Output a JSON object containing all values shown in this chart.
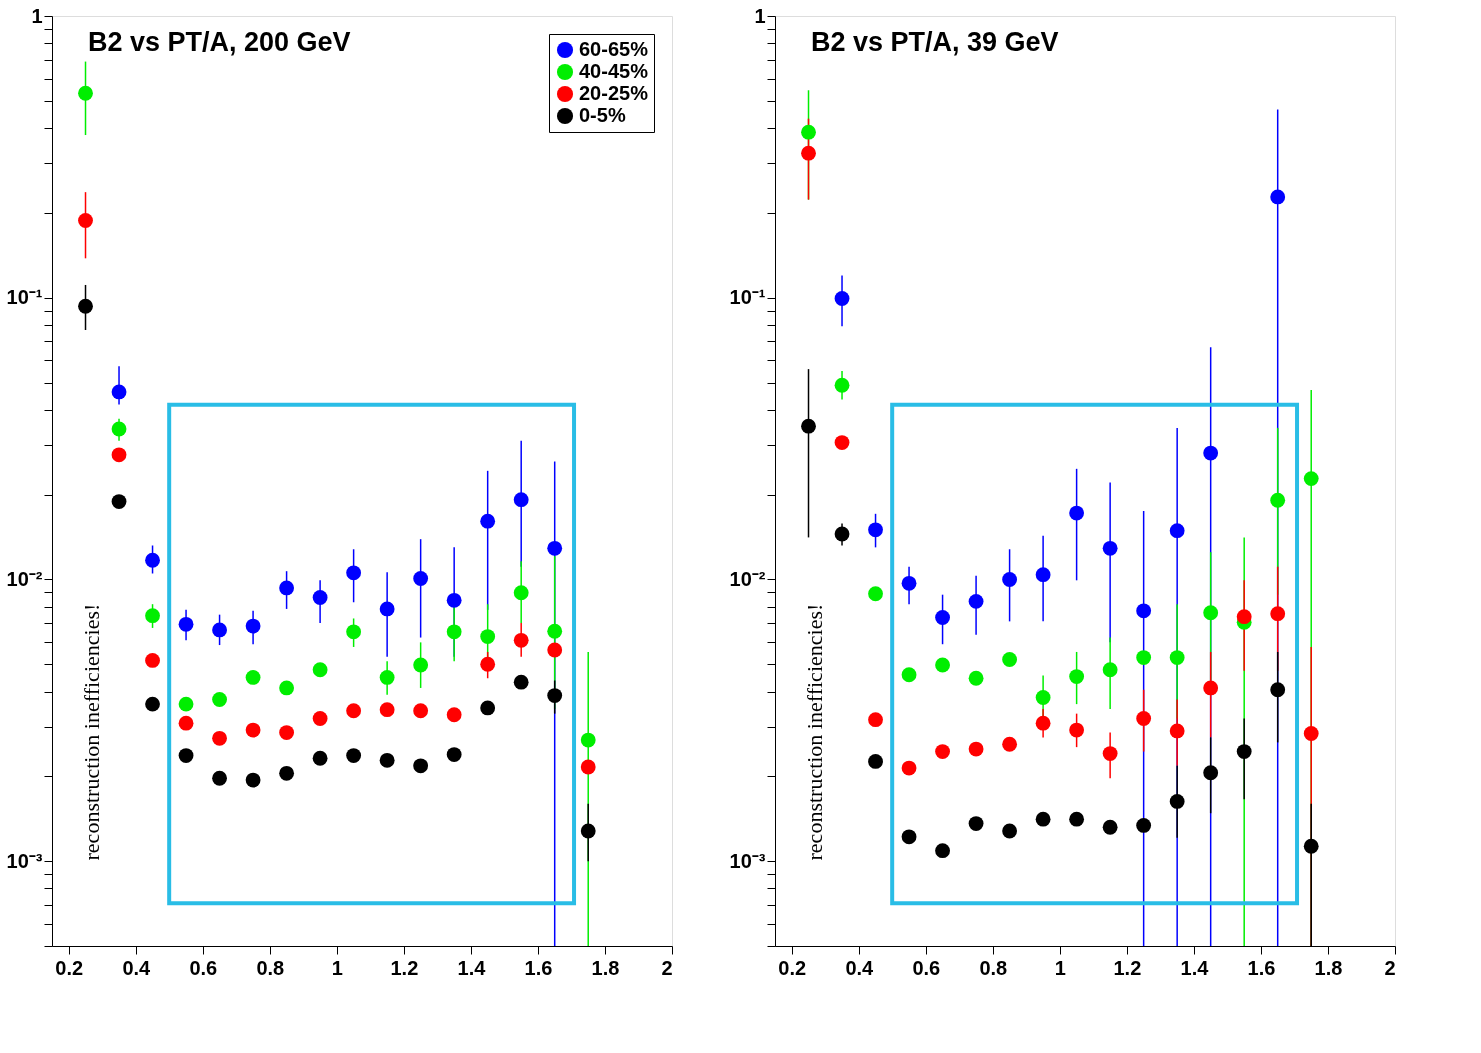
{
  "chart_data": [
    {
      "type": "scatter",
      "title": "B2 vs PT/A, 200 GeV",
      "marker": "circle",
      "log": true,
      "grid": false,
      "legend": "top right",
      "x": [
        0.25,
        0.35,
        0.45,
        0.55,
        0.65,
        0.75,
        0.85,
        0.95,
        1.05,
        1.15,
        1.25,
        1.35,
        1.45,
        1.55,
        1.65,
        1.75
      ],
      "xlim": [
        0.15,
        2
      ],
      "ylim": [
        0.0005,
        1
      ],
      "xticks": [
        0.2,
        0.4,
        0.6,
        0.8,
        1,
        1.2,
        1.4,
        1.6,
        1.8,
        2
      ],
      "yticks": [
        {
          "value": 0.0005,
          "label": null
        },
        {
          "value": 0.0006,
          "label": null
        },
        {
          "value": 0.0007,
          "label": null
        },
        {
          "value": 0.0008,
          "label": null
        },
        {
          "value": 0.0009,
          "label": null
        },
        {
          "value": 0.001,
          "label": "10⁻³"
        },
        {
          "value": 0.002,
          "label": null
        },
        {
          "value": 0.003,
          "label": null
        },
        {
          "value": 0.004,
          "label": null
        },
        {
          "value": 0.005,
          "label": null
        },
        {
          "value": 0.006,
          "label": null
        },
        {
          "value": 0.007,
          "label": null
        },
        {
          "value": 0.008,
          "label": null
        },
        {
          "value": 0.009,
          "label": null
        },
        {
          "value": 0.01,
          "label": "10⁻²"
        },
        {
          "value": 0.02,
          "label": null
        },
        {
          "value": 0.03,
          "label": null
        },
        {
          "value": 0.04,
          "label": null
        },
        {
          "value": 0.05,
          "label": null
        },
        {
          "value": 0.06,
          "label": null
        },
        {
          "value": 0.07,
          "label": null
        },
        {
          "value": 0.08,
          "label": null
        },
        {
          "value": 0.09,
          "label": null
        },
        {
          "value": 0.1,
          "label": "10⁻¹"
        },
        {
          "value": 0.2,
          "label": null
        },
        {
          "value": 0.3,
          "label": null
        },
        {
          "value": 0.4,
          "label": null
        },
        {
          "value": 0.5,
          "label": null
        },
        {
          "value": 0.6,
          "label": null
        },
        {
          "value": 0.7,
          "label": null
        },
        {
          "value": 0.8,
          "label": null
        },
        {
          "value": 0.9,
          "label": null
        },
        1
      ],
      "annotations": [
        "reconstruction inefficiencies!"
      ],
      "series": [
        {
          "name": "60-65%",
          "color": "#0000ff",
          "values": [
            null,
            0.0463,
            0.0117,
            0.00693,
            0.00662,
            0.00683,
            0.00933,
            0.00863,
            0.01056,
            0.00786,
            0.01008,
            0.00843,
            0.0161,
            0.0192,
            0.0129,
            null
          ],
          "errors": [
            null,
            [
              0.0418,
              0.0571
            ],
            [
              0.0105,
              0.0132
            ],
            [
              0.00608,
              0.0078
            ],
            [
              0.00585,
              0.0075
            ],
            [
              0.00589,
              0.00774
            ],
            [
              0.00786,
              0.0107
            ],
            [
              0.007,
              0.00993
            ],
            [
              0.0083,
              0.0128
            ],
            [
              0.00532,
              0.0106
            ],
            [
              0.00622,
              0.0139
            ],
            [
              0.00532,
              0.013
            ],
            [
              0.0078,
              0.0243
            ],
            [
              0.0111,
              0.0311
            ],
            [
              0.0005,
              0.0262
            ],
            null
          ]
        },
        {
          "name": "40-45%",
          "color": "#00ee00",
          "values": [
            0.532,
            0.0342,
            0.00744,
            0.00361,
            0.00375,
            0.00449,
            0.00412,
            0.00478,
            0.00652,
            0.00449,
            0.00497,
            0.00652,
            0.00627,
            0.00897,
            0.00655,
            0.00269
          ],
          "errors": [
            [
              0.378,
              0.689
            ],
            [
              0.0311,
              0.0372
            ],
            [
              0.00673,
              0.00817
            ],
            null,
            null,
            null,
            null,
            null,
            [
              0.00576,
              0.00727
            ],
            [
              0.0039,
              0.00512
            ],
            [
              0.00412,
              0.00598
            ],
            [
              0.00512,
              0.00817
            ],
            [
              0.00474,
              0.00817
            ],
            [
              0.007,
              0.0116
            ],
            [
              0.00347,
              0.0121
            ],
            [
              0.0005,
              0.00553
            ]
          ]
        },
        {
          "name": "20-25%",
          "color": "#ff0000",
          "values": [
            0.188,
            0.0277,
            0.00516,
            0.00309,
            0.00273,
            0.00292,
            0.00286,
            0.00321,
            0.00342,
            0.00345,
            0.00342,
            0.00331,
            0.005,
            0.00608,
            0.00562,
            0.00216
          ],
          "errors": [
            [
              0.138,
              0.237
            ],
            null,
            null,
            null,
            null,
            null,
            null,
            null,
            null,
            null,
            null,
            null,
            [
              0.00446,
              0.00553
            ],
            [
              0.00532,
              0.007
            ],
            null,
            null
          ]
        },
        {
          "name": "0-5%",
          "color": "#000000",
          "values": [
            0.0933,
            0.0189,
            0.00361,
            0.00237,
            0.00197,
            0.00194,
            0.00205,
            0.00232,
            0.00237,
            0.00228,
            0.00218,
            0.00239,
            0.0035,
            0.00432,
            0.00387,
            0.00128
          ],
          "errors": [
            [
              0.0768,
              0.111
            ],
            null,
            null,
            null,
            null,
            null,
            null,
            null,
            null,
            null,
            null,
            null,
            null,
            null,
            [
              0.00334,
              0.00438
            ],
            [
              0.001,
              0.0016
            ]
          ]
        }
      ]
    },
    {
      "type": "scatter",
      "title": "B2 vs PT/A, 39 GeV",
      "marker": "circle",
      "log": true,
      "grid": false,
      "x": [
        0.25,
        0.35,
        0.45,
        0.55,
        0.65,
        0.75,
        0.85,
        0.95,
        1.05,
        1.15,
        1.25,
        1.35,
        1.45,
        1.55,
        1.65,
        1.75
      ],
      "xlim": [
        0.15,
        2
      ],
      "ylim": [
        0.0005,
        1
      ],
      "xticks": [
        0.2,
        0.4,
        0.6,
        0.8,
        1,
        1.2,
        1.4,
        1.6,
        1.8,
        2
      ],
      "yticks": [
        {
          "value": 0.0005,
          "label": null
        },
        {
          "value": 0.0006,
          "label": null
        },
        {
          "value": 0.0007,
          "label": null
        },
        {
          "value": 0.0008,
          "label": null
        },
        {
          "value": 0.0009,
          "label": null
        },
        {
          "value": 0.001,
          "label": "10⁻³"
        },
        {
          "value": 0.002,
          "label": null
        },
        {
          "value": 0.003,
          "label": null
        },
        {
          "value": 0.004,
          "label": null
        },
        {
          "value": 0.005,
          "label": null
        },
        {
          "value": 0.006,
          "label": null
        },
        {
          "value": 0.007,
          "label": null
        },
        {
          "value": 0.008,
          "label": null
        },
        {
          "value": 0.009,
          "label": null
        },
        {
          "value": 0.01,
          "label": "10⁻²"
        },
        {
          "value": 0.02,
          "label": null
        },
        {
          "value": 0.03,
          "label": null
        },
        {
          "value": 0.04,
          "label": null
        },
        {
          "value": 0.05,
          "label": null
        },
        {
          "value": 0.06,
          "label": null
        },
        {
          "value": 0.07,
          "label": null
        },
        {
          "value": 0.08,
          "label": null
        },
        {
          "value": 0.09,
          "label": null
        },
        {
          "value": 0.1,
          "label": "10⁻¹"
        },
        {
          "value": 0.2,
          "label": null
        },
        {
          "value": 0.3,
          "label": null
        },
        {
          "value": 0.4,
          "label": null
        },
        {
          "value": 0.5,
          "label": null
        },
        {
          "value": 0.6,
          "label": null
        },
        {
          "value": 0.7,
          "label": null
        },
        {
          "value": 0.8,
          "label": null
        },
        {
          "value": 0.9,
          "label": null
        },
        1
      ],
      "annotations": [
        "reconstruction inefficiencies!"
      ],
      "series": [
        {
          "color": "#0000ff",
          "values": [
            null,
            0.0994,
            0.015,
            0.00969,
            0.00733,
            0.00836,
            0.01,
            0.0104,
            0.0172,
            0.0129,
            0.00774,
            0.0149,
            0.0281,
            null,
            0.228,
            null
          ],
          "errors": [
            null,
            [
              0.0792,
              0.12
            ],
            [
              0.013,
              0.0171
            ],
            [
              0.00817,
              0.0111
            ],
            [
              0.00589,
              0.00883
            ],
            [
              0.00637,
              0.0103
            ],
            [
              0.0071,
              0.0128
            ],
            [
              0.0071,
              0.0143
            ],
            [
              0.00993,
              0.0247
            ],
            [
              0.00598,
              0.0221
            ],
            [
              0.0005,
              0.0175
            ],
            [
              0.0005,
              0.0345
            ],
            [
              0.0005,
              0.0667
            ],
            null,
            [
              0.0005,
              0.466
            ],
            null
          ]
        },
        {
          "color": "#00ee00",
          "values": [
            0.387,
            0.0489,
            0.0089,
            0.00459,
            0.00497,
            0.00446,
            0.0052,
            0.00381,
            0.00452,
            0.00478,
            0.00528,
            0.00528,
            0.00762,
            0.00705,
            0.0191,
            0.0228
          ],
          "errors": [
            [
              0.223,
              0.545
            ],
            [
              0.0435,
              0.055
            ],
            null,
            null,
            null,
            null,
            null,
            [
              0.00321,
              0.00456
            ],
            [
              0.00361,
              0.00553
            ],
            [
              0.00347,
              0.00622
            ],
            null,
            [
              0.00321,
              0.00817
            ],
            [
              0.00438,
              0.0125
            ],
            [
              0.0005,
              0.0141
            ],
            [
              0.00883,
              0.0345
            ],
            [
              0.0005,
              0.047
            ]
          ]
        },
        {
          "color": "#ff0000",
          "values": [
            0.326,
            0.0306,
            0.00318,
            0.00214,
            0.00245,
            0.0025,
            0.0026,
            0.00309,
            0.00292,
            0.00241,
            0.00321,
            0.0029,
            0.00412,
            0.00738,
            0.00756,
            0.00284
          ],
          "errors": [
            [
              0.223,
              0.432
            ],
            null,
            null,
            null,
            null,
            null,
            null,
            [
              0.00275,
              0.00347
            ],
            [
              0.00254,
              0.00334
            ],
            [
              0.00197,
              0.00286
            ],
            [
              0.00245,
              0.00406
            ],
            [
              0.00218,
              0.00375
            ],
            [
              0.00275,
              0.00553
            ],
            [
              0.00474,
              0.00993
            ],
            [
              0.00474,
              0.0111
            ],
            [
              0.0005,
              0.00576
            ]
          ]
        },
        {
          "color": "#000000",
          "values": [
            0.035,
            0.0145,
            0.00226,
            0.00122,
            0.00109,
            0.00136,
            0.00128,
            0.00141,
            0.00141,
            0.00132,
            0.00134,
            0.00163,
            0.00206,
            0.00245,
            0.00406,
            0.00113
          ],
          "errors": [
            [
              0.0141,
              0.0558
            ],
            [
              0.0132,
              0.0158
            ],
            null,
            null,
            null,
            null,
            null,
            null,
            null,
            null,
            null,
            [
              0.00121,
              0.00218
            ],
            [
              0.00148,
              0.00275
            ],
            [
              0.00166,
              0.00321
            ],
            [
              0.00264,
              0.00553
            ],
            [
              0.0005,
              0.0016
            ]
          ]
        }
      ]
    }
  ]
}
